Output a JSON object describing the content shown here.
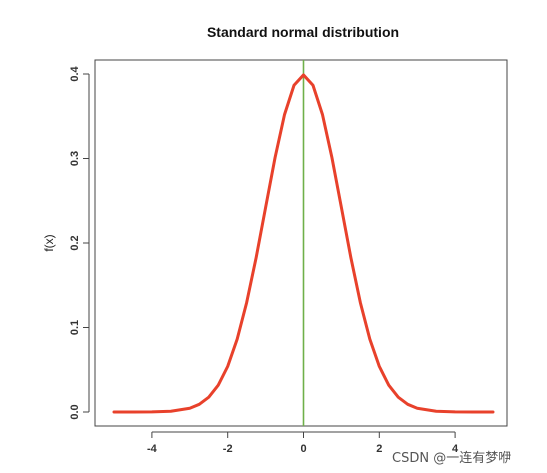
{
  "chart_data": {
    "type": "line",
    "title": "Standard normal distribution",
    "xlabel": "",
    "ylabel": "f(x)",
    "xlim": [
      -5,
      5
    ],
    "ylim": [
      0,
      0.4
    ],
    "x_ticks": [
      "-4",
      "-2",
      "0",
      "2",
      "4"
    ],
    "y_ticks": [
      "0.0",
      "0.1",
      "0.2",
      "0.3",
      "0.4"
    ],
    "grid": false,
    "series": [
      {
        "color": "#e8412b",
        "x": [
          -5,
          -4.5,
          -4,
          -3.5,
          -3,
          -2.75,
          -2.5,
          -2.25,
          -2,
          -1.75,
          -1.5,
          -1.25,
          -1,
          -0.75,
          -0.5,
          -0.25,
          0,
          0.25,
          0.5,
          0.75,
          1,
          1.25,
          1.5,
          1.75,
          2,
          2.25,
          2.5,
          2.75,
          3,
          3.5,
          4,
          4.5,
          5
        ],
        "y": [
          1.5e-06,
          1.6e-05,
          0.000134,
          0.000873,
          0.00443,
          0.00909,
          0.0175,
          0.0317,
          0.054,
          0.0863,
          0.1295,
          0.1826,
          0.242,
          0.3011,
          0.3521,
          0.3867,
          0.3989,
          0.3867,
          0.3521,
          0.3011,
          0.242,
          0.1826,
          0.1295,
          0.0863,
          0.054,
          0.0317,
          0.0175,
          0.00909,
          0.00443,
          0.000873,
          0.000134,
          1.6e-05,
          1.5e-06
        ]
      }
    ],
    "vertical_line": {
      "x": 0,
      "color": "#6fb04a"
    }
  },
  "watermark": {
    "text": "CSDN @一连有梦咿"
  }
}
